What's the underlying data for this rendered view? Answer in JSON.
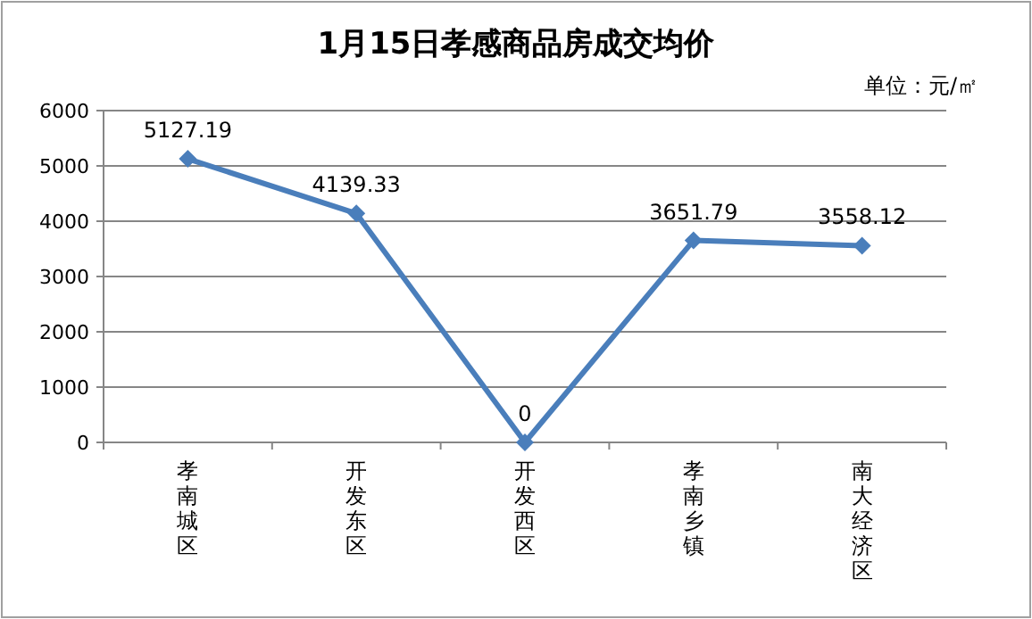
{
  "chart_data": {
    "type": "line",
    "title": "1月15日孝感商品房成交均价",
    "annotations": [
      "单位：元/㎡"
    ],
    "categories": [
      "孝南城区",
      "开发东区",
      "开发西区",
      "孝南乡镇",
      "南大经济区"
    ],
    "series": [
      {
        "color": "#4a7ebb",
        "values": [
          5127.19,
          4139.33,
          0,
          3651.79,
          3558.12
        ]
      }
    ],
    "ylim": [
      0,
      6000
    ],
    "yticks": [
      0,
      1000,
      2000,
      3000,
      4000,
      5000,
      6000
    ],
    "grid": "y",
    "marker": "diamond",
    "line_style": "solid",
    "data_labels": true
  }
}
